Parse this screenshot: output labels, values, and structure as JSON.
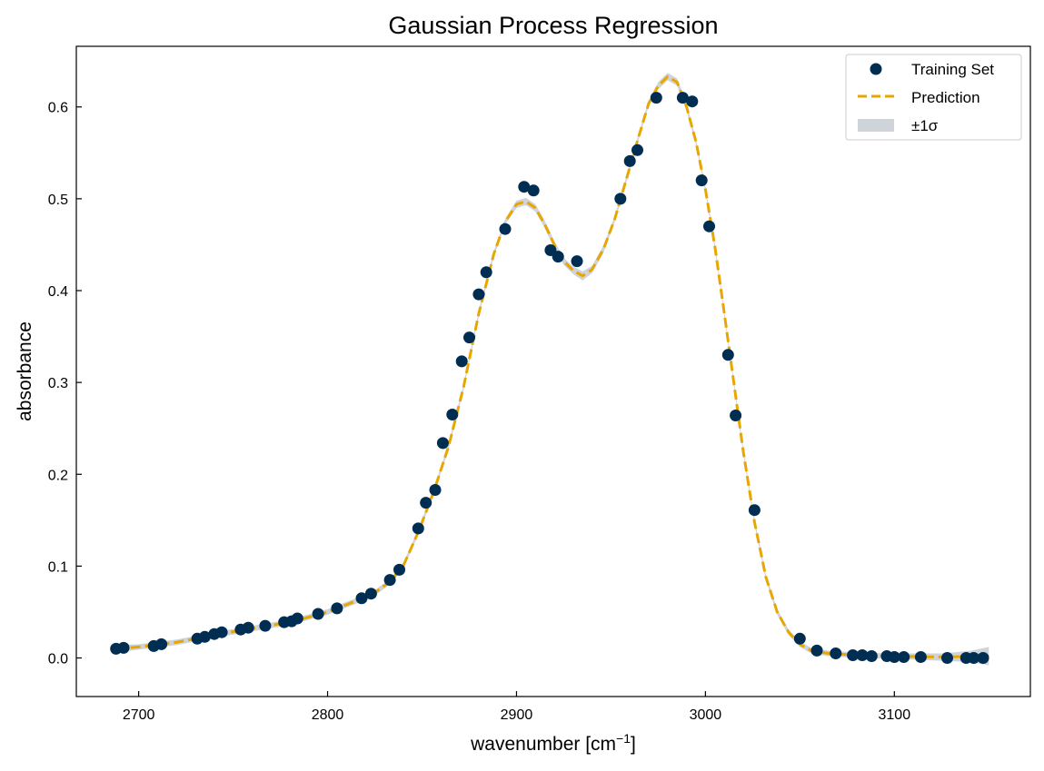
{
  "chart_data": {
    "type": "scatter",
    "title": "Gaussian Process Regression",
    "xlabel": "wavenumber [cm",
    "xlabel_sup": "−1",
    "xlabel_end": "]",
    "ylabel": "absorbance",
    "xlim": [
      2667,
      3172
    ],
    "ylim": [
      -0.042,
      0.666
    ],
    "xticks": [
      2700,
      2800,
      2900,
      3000,
      3100
    ],
    "yticks": [
      0.0,
      0.1,
      0.2,
      0.3,
      0.4,
      0.5,
      0.6
    ],
    "ytick_labels": [
      "0.0",
      "0.1",
      "0.2",
      "0.3",
      "0.4",
      "0.5",
      "0.6"
    ],
    "grid": false,
    "legend_position": "top-right",
    "colors": {
      "training": "#002d52",
      "prediction": "#e8a700",
      "band": "#cfd4db"
    },
    "series": [
      {
        "name": "Training Set",
        "kind": "scatter",
        "x": [
          2688,
          2692,
          2708,
          2712,
          2731,
          2735,
          2740,
          2744,
          2754,
          2758,
          2767,
          2777,
          2781,
          2784,
          2795,
          2805,
          2818,
          2823,
          2833,
          2838,
          2848,
          2852,
          2857,
          2861,
          2866,
          2871,
          2875,
          2880,
          2884,
          2894,
          2904,
          2909,
          2918,
          2922,
          2932,
          2955,
          2960,
          2964,
          2974,
          2988,
          2993,
          2998,
          3002,
          3012,
          3016,
          3026,
          3050,
          3059,
          3069,
          3078,
          3083,
          3088,
          3096,
          3100,
          3105,
          3114,
          3128,
          3138,
          3142,
          3147
        ],
        "y": [
          0.01,
          0.011,
          0.013,
          0.015,
          0.021,
          0.023,
          0.026,
          0.028,
          0.031,
          0.033,
          0.035,
          0.039,
          0.04,
          0.043,
          0.048,
          0.054,
          0.065,
          0.07,
          0.085,
          0.096,
          0.141,
          0.169,
          0.183,
          0.234,
          0.265,
          0.323,
          0.349,
          0.396,
          0.42,
          0.467,
          0.513,
          0.509,
          0.444,
          0.437,
          0.432,
          0.5,
          0.541,
          0.553,
          0.61,
          0.61,
          0.606,
          0.52,
          0.47,
          0.33,
          0.264,
          0.161,
          0.021,
          0.008,
          0.005,
          0.003,
          0.003,
          0.002,
          0.002,
          0.001,
          0.001,
          0.001,
          0.0,
          0.0,
          0.0,
          0.0
        ]
      },
      {
        "name": "Prediction",
        "kind": "line",
        "x": [
          2688,
          2700,
          2720,
          2740,
          2760,
          2780,
          2800,
          2815,
          2825,
          2833,
          2840,
          2848,
          2856,
          2864,
          2872,
          2880,
          2888,
          2894,
          2900,
          2905,
          2910,
          2915,
          2920,
          2925,
          2930,
          2935,
          2940,
          2946,
          2952,
          2958,
          2964,
          2970,
          2975,
          2980,
          2985,
          2990,
          2995,
          3000,
          3005,
          3010,
          3015,
          3020,
          3026,
          3032,
          3038,
          3044,
          3050,
          3056,
          3065,
          3080,
          3100,
          3125,
          3150
        ],
        "y": [
          0.01,
          0.012,
          0.017,
          0.025,
          0.032,
          0.039,
          0.05,
          0.062,
          0.071,
          0.083,
          0.1,
          0.137,
          0.18,
          0.23,
          0.295,
          0.375,
          0.44,
          0.475,
          0.494,
          0.497,
          0.49,
          0.472,
          0.45,
          0.432,
          0.422,
          0.416,
          0.423,
          0.445,
          0.478,
          0.52,
          0.563,
          0.604,
          0.623,
          0.633,
          0.627,
          0.6,
          0.562,
          0.51,
          0.448,
          0.375,
          0.3,
          0.225,
          0.148,
          0.088,
          0.05,
          0.028,
          0.015,
          0.008,
          0.005,
          0.003,
          0.002,
          0.001,
          0.002
        ]
      },
      {
        "name": "±1σ",
        "kind": "band",
        "x": [
          2688,
          2700,
          2720,
          2740,
          2760,
          2780,
          2800,
          2815,
          2825,
          2833,
          2840,
          2848,
          2856,
          2864,
          2872,
          2880,
          2888,
          2894,
          2900,
          2905,
          2910,
          2915,
          2920,
          2925,
          2930,
          2935,
          2940,
          2946,
          2952,
          2958,
          2964,
          2970,
          2975,
          2980,
          2985,
          2990,
          2995,
          3000,
          3005,
          3010,
          3015,
          3020,
          3026,
          3032,
          3038,
          3044,
          3050,
          3056,
          3065,
          3080,
          3100,
          3125,
          3140,
          3150
        ],
        "halfwidth": [
          0.004,
          0.003,
          0.003,
          0.003,
          0.003,
          0.003,
          0.003,
          0.003,
          0.003,
          0.003,
          0.003,
          0.003,
          0.003,
          0.003,
          0.003,
          0.003,
          0.003,
          0.003,
          0.004,
          0.004,
          0.004,
          0.004,
          0.004,
          0.004,
          0.004,
          0.005,
          0.004,
          0.004,
          0.003,
          0.003,
          0.003,
          0.003,
          0.004,
          0.004,
          0.004,
          0.004,
          0.003,
          0.003,
          0.003,
          0.003,
          0.003,
          0.003,
          0.003,
          0.003,
          0.003,
          0.003,
          0.003,
          0.003,
          0.003,
          0.003,
          0.003,
          0.004,
          0.006,
          0.01
        ]
      }
    ]
  }
}
